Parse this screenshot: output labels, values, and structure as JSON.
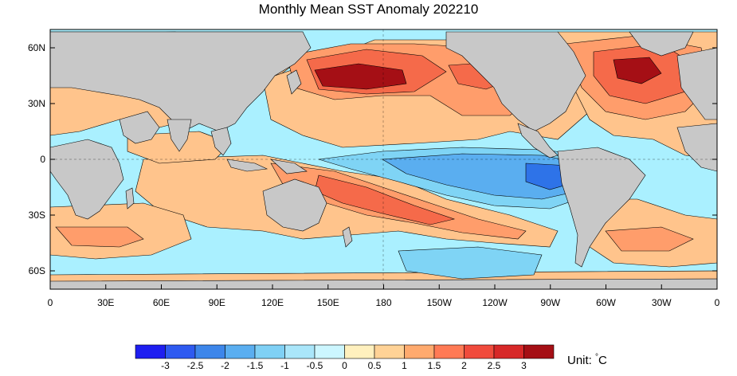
{
  "title": "Monthly Mean SST Anomaly 202210",
  "map": {
    "lat_ticks": [
      "60N",
      "30N",
      "0",
      "30S",
      "60S"
    ],
    "lon_ticks": [
      "0",
      "30E",
      "60E",
      "90E",
      "120E",
      "150E",
      "180",
      "150W",
      "120W",
      "90W",
      "60W",
      "30W",
      "0"
    ],
    "colors": {
      "land": "#c8c8c8",
      "ocean_cool": "#aaf0ff",
      "cool_2": "#7fd4f5",
      "cool_3": "#5aaef0",
      "cool_4": "#2e73e8",
      "neutral": "#ffffff",
      "warm_1": "#ffc48c",
      "warm_2": "#ff9d6b",
      "warm_3": "#f56a4a",
      "warm_4": "#e23a2e",
      "warm_5": "#a50f15"
    }
  },
  "colorbar": {
    "labels": [
      "-3",
      "-2.5",
      "-2",
      "-1.5",
      "-1",
      "-0.5",
      "0",
      "0.5",
      "1",
      "1.5",
      "2",
      "2.5",
      "3"
    ],
    "colors": [
      "#1e1ef0",
      "#2e5af0",
      "#3d86ea",
      "#5aaef0",
      "#7fd0f5",
      "#aae6fa",
      "#ccf6ff",
      "#fff0be",
      "#ffd296",
      "#ffaa6e",
      "#ff7a55",
      "#f04b3c",
      "#d72828",
      "#a50f15"
    ],
    "unit_label": "Unit: ",
    "unit_symbol": "°",
    "unit_letter": "C"
  }
}
